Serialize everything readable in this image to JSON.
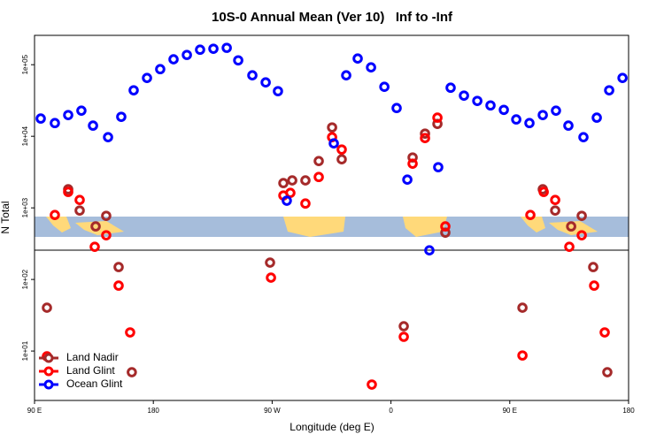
{
  "chart_data": {
    "type": "scatter",
    "title": "10S-0 Annual Mean (Ver 10)   Inf to -Inf",
    "x_label": "Longitude (deg E)",
    "y_label": "N Total",
    "xlim": [
      90,
      540
    ],
    "xticks": [
      {
        "value": 90,
        "label": "90 E"
      },
      180,
      {
        "value": 270,
        "label": "90 W"
      },
      {
        "value": 360,
        "label": "0"
      },
      {
        "value": 450,
        "label": "90 E"
      },
      {
        "value": 540,
        "label": "180"
      }
    ],
    "ylim": [
      2.04,
      257000
    ],
    "log_y": true,
    "yticks": [
      {
        "value": 10,
        "label": "1e+01"
      },
      {
        "value": 100,
        "label": "1e+02"
      },
      {
        "value": 1000,
        "label": "1e+03"
      },
      {
        "value": 10000,
        "label": "1e+04"
      },
      {
        "value": 100000,
        "label": "1e+05"
      }
    ],
    "legend": "bottom-left",
    "series": [
      {
        "name": "Land Nadir",
        "color": "#a52a2a",
        "x": [
          99.4,
          115.5,
          124.2,
          136.3,
          144.3,
          153.7,
          163.7,
          268.4,
          278.5,
          285.2,
          295.2,
          305.3,
          315.4,
          322.7,
          369.7,
          376.4,
          385.8,
          395.2,
          401.2,
          459.6,
          475.0,
          484.4,
          496.5,
          504.5,
          513.2,
          523.9
        ],
        "values": [
          40.3,
          1820,
          918,
          551,
          774,
          149,
          5.06,
          172,
          2220,
          2420,
          2420,
          4510,
          13300,
          4770,
          22.2,
          5060,
          10900,
          14900,
          451,
          40.3,
          1820,
          918,
          551,
          774,
          149,
          5.06
        ]
      },
      {
        "name": "Land Glint",
        "color": "#ff0000",
        "x": [
          99.4,
          105.4,
          115.5,
          124.2,
          135.6,
          144.3,
          153.7,
          162.4,
          269.1,
          278.5,
          283.8,
          295.2,
          305.3,
          315.4,
          322.7,
          345.5,
          369.7,
          376.4,
          385.8,
          395.2,
          401.2,
          459.6,
          465.6,
          475.7,
          484.4,
          495.1,
          504.5,
          513.9,
          521.9
        ],
        "values": [
          8.43,
          796,
          1670,
          1290,
          286,
          414,
          82.0,
          18.2,
          106,
          1490,
          1620,
          1150,
          2700,
          9720,
          6530,
          3.4,
          15.8,
          4140,
          9440,
          18200,
          551,
          8.67,
          796,
          1670,
          1290,
          286,
          414,
          82.0,
          18.2
        ]
      },
      {
        "name": "Ocean Glint",
        "color": "#0000ff",
        "x": [
          94.7,
          105.4,
          115.5,
          125.5,
          134.3,
          145.7,
          155.7,
          165.1,
          175.2,
          185.2,
          195.3,
          205.4,
          215.4,
          225.5,
          235.6,
          244.3,
          255.0,
          265.1,
          274.4,
          281.1,
          316.7,
          326.1,
          334.8,
          344.9,
          355.0,
          364.3,
          372.4,
          389.1,
          395.8,
          405.2,
          415.3,
          425.4,
          435.4,
          445.5,
          454.9,
          464.9,
          475.0,
          485.0,
          494.4,
          505.8,
          515.9,
          525.3,
          535.4
        ],
        "values": [
          17700,
          15300,
          19800,
          22800,
          14100,
          9720,
          18700,
          43900,
          65300,
          86700,
          119000,
          137000,
          162000,
          167000,
          172000,
          115000,
          71100,
          56600,
          42700,
          1260,
          7960,
          71100,
          122000,
          91800,
          49100,
          24800,
          2480,
          255,
          3700,
          47700,
          37000,
          31200,
          27000,
          23400,
          17200,
          15300,
          19800,
          22800,
          14100,
          9720,
          18200,
          43900,
          65300
        ]
      }
    ]
  }
}
